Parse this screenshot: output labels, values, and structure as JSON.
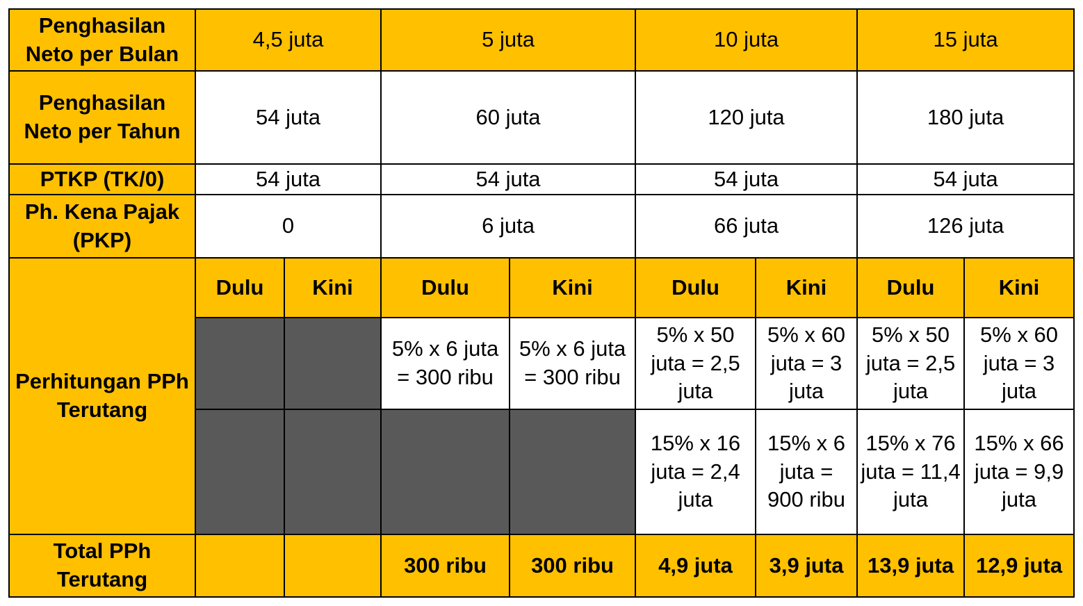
{
  "colors": {
    "header_fill": "#FFC000",
    "body_fill": "#FFFFFF",
    "empty_fill": "#595959",
    "border": "#000000"
  },
  "rows": {
    "monthly": {
      "label": "Penghasilan Neto per Bulan",
      "values": [
        "4,5 juta",
        "5 juta",
        "10 juta",
        "15 juta"
      ]
    },
    "yearly": {
      "label": "Penghasilan Neto per Tahun",
      "values": [
        "54 juta",
        "60 juta",
        "120 juta",
        "180 juta"
      ]
    },
    "ptkp": {
      "label": "PTKP (TK/0)",
      "values": [
        "54 juta",
        "54 juta",
        "54 juta",
        "54 juta"
      ]
    },
    "pkp": {
      "label": "Ph. Kena Pajak (PKP)",
      "values": [
        "0",
        "6 juta",
        "66 juta",
        "126 juta"
      ]
    },
    "calc": {
      "label": "Perhitungan PPh Terutang",
      "headers": [
        "Dulu",
        "Kini",
        "Dulu",
        "Kini",
        "Dulu",
        "Kini",
        "Dulu",
        "Kini"
      ],
      "tier1": [
        "",
        "",
        "5% x 6 juta = 300 ribu",
        "5% x 6 juta = 300 ribu",
        "5% x 50 juta = 2,5 juta",
        "5% x 60 juta = 3 juta",
        "5% x 50 juta = 2,5 juta",
        "5% x 60 juta = 3 juta"
      ],
      "tier2": [
        "",
        "",
        "",
        "",
        "15% x 16 juta = 2,4 juta",
        "15% x 6 juta = 900 ribu",
        "15% x 76 juta = 11,4 juta",
        "15% x 66 juta = 9,9 juta"
      ]
    },
    "total": {
      "label": "Total PPh Terutang",
      "values": [
        "",
        "",
        "300 ribu",
        "300 ribu",
        "4,9 juta",
        "3,9 juta",
        "13,9 juta",
        "12,9 juta"
      ]
    }
  }
}
